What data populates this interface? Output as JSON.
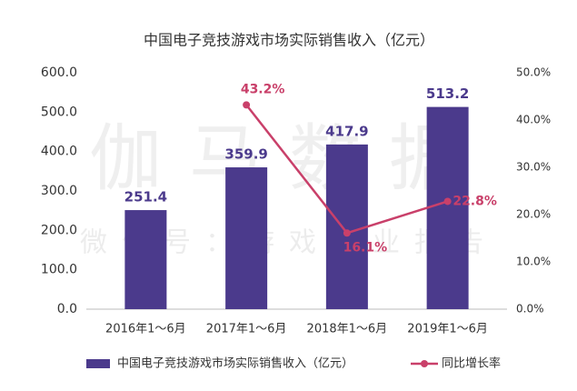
{
  "chart_data": {
    "type": "bar",
    "title": "中国电子竞技游戏市场实际销售收入（亿元）",
    "watermark": [
      "伽马数据",
      "微信号：游戏产业报告"
    ],
    "categories": [
      "2016年1～6月",
      "2017年1～6月",
      "2018年1～6月",
      "2019年1～6月"
    ],
    "series": [
      {
        "name": "中国电子竞技游戏市场实际销售收入（亿元）",
        "type": "bar",
        "color": "#4b3a8c",
        "values": [
          251.4,
          359.9,
          417.9,
          513.2
        ]
      },
      {
        "name": "同比增长率",
        "type": "line",
        "axis": "y2",
        "color": "#c9406a",
        "values": [
          null,
          43.2,
          16.1,
          22.8
        ],
        "value_labels": [
          null,
          "43.2%",
          "16.1%",
          "22.8%"
        ]
      }
    ],
    "ylim": [
      0,
      600
    ],
    "yticks": [
      {
        "value": 0,
        "label": "0.0"
      },
      {
        "value": 100,
        "label": "100.0"
      },
      {
        "value": 200,
        "label": "200.0"
      },
      {
        "value": 300,
        "label": "300.0"
      },
      {
        "value": 400,
        "label": "400.0"
      },
      {
        "value": 500,
        "label": "500.0"
      },
      {
        "value": 600,
        "label": "600.0"
      }
    ],
    "y2lim": [
      0,
      50
    ],
    "y2ticks": [
      {
        "value": 0,
        "label": "0.0%"
      },
      {
        "value": 10,
        "label": "10.0%"
      },
      {
        "value": 20,
        "label": "20.0%"
      },
      {
        "value": 30,
        "label": "30.0%"
      },
      {
        "value": 40,
        "label": "40.0%"
      },
      {
        "value": 50,
        "label": "50.0%"
      }
    ],
    "grid": false,
    "legend": "bottom"
  }
}
